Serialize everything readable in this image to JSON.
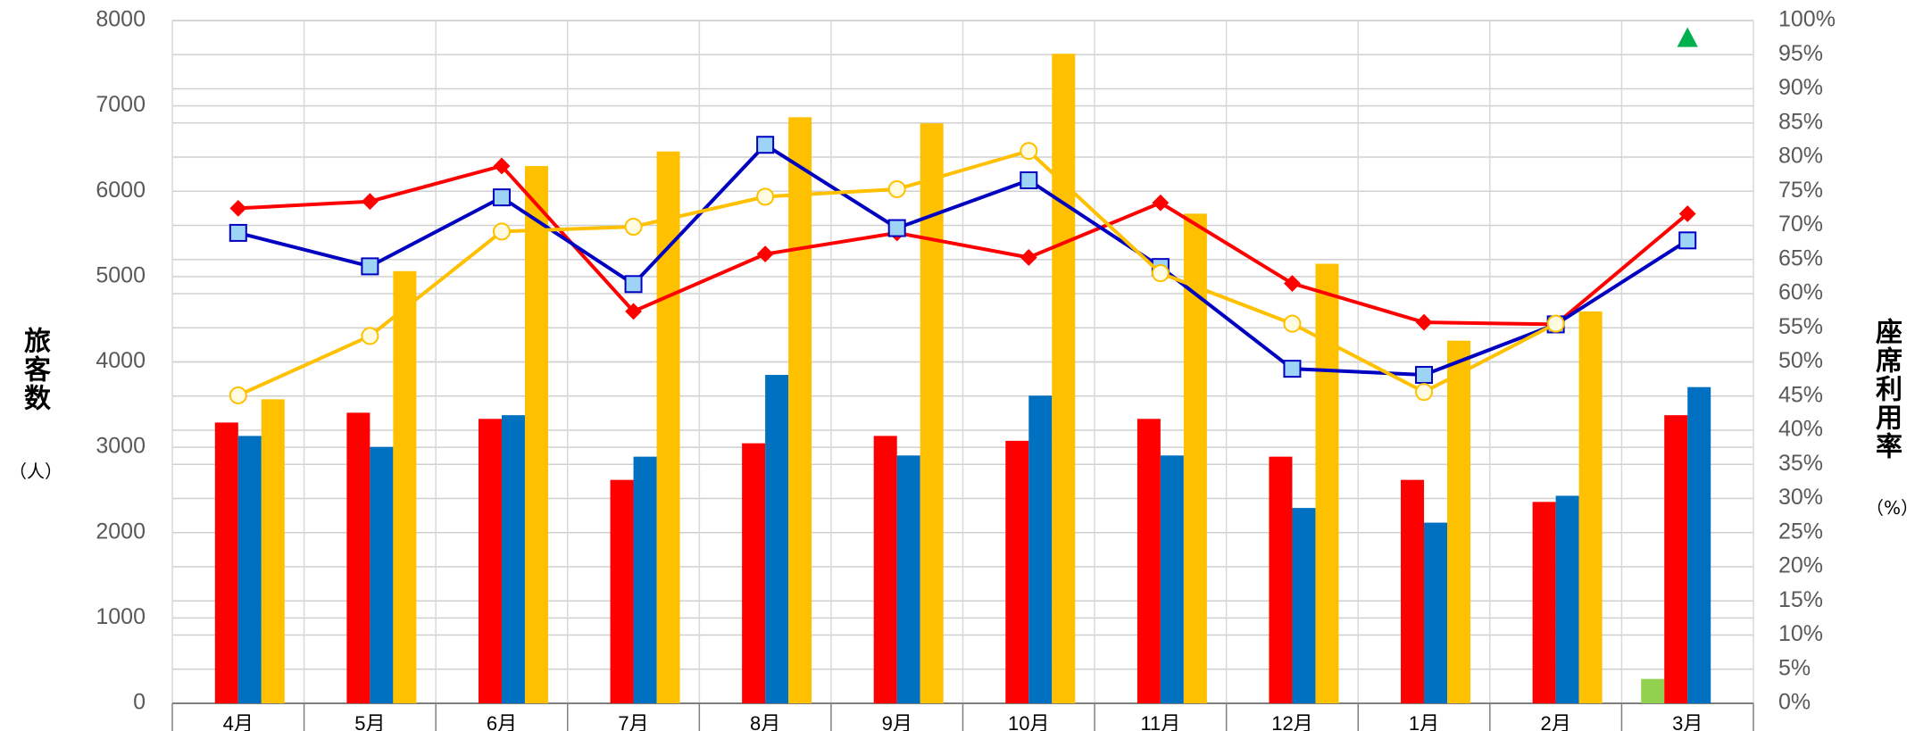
{
  "chart_data": {
    "type": "bar",
    "y_label": "旅客数",
    "y_unit": "（人）",
    "y2_label": "座席利用率",
    "y2_unit": "（%）",
    "categories": [
      "4月",
      "5月",
      "6月",
      "7月",
      "8月",
      "9月",
      "10月",
      "11月",
      "12月",
      "1月",
      "2月",
      "3月"
    ],
    "ylim": [
      0,
      8000
    ],
    "yticks": [
      0,
      1000,
      2000,
      3000,
      4000,
      5000,
      6000,
      7000,
      8000
    ],
    "y2lim": [
      0,
      100
    ],
    "y2ticks": [
      {
        "value": 0,
        "label": "0%"
      },
      {
        "value": 5,
        "label": "5%"
      },
      {
        "value": 10,
        "label": "10%"
      },
      {
        "value": 15,
        "label": "15%"
      },
      {
        "value": 20,
        "label": "20%"
      },
      {
        "value": 25,
        "label": "25%"
      },
      {
        "value": 30,
        "label": "30%"
      },
      {
        "value": 35,
        "label": "35%"
      },
      {
        "value": 40,
        "label": "40%"
      },
      {
        "value": 45,
        "label": "45%"
      },
      {
        "value": 50,
        "label": "50%"
      },
      {
        "value": 55,
        "label": "55%"
      },
      {
        "value": 60,
        "label": "60%"
      },
      {
        "value": 65,
        "label": "65%"
      },
      {
        "value": 70,
        "label": "70%"
      },
      {
        "value": 75,
        "label": "75%"
      },
      {
        "value": 80,
        "label": "80%"
      },
      {
        "value": 85,
        "label": "85%"
      },
      {
        "value": 90,
        "label": "90%"
      },
      {
        "value": 95,
        "label": "95%"
      },
      {
        "value": 100,
        "label": "100%"
      }
    ],
    "grid": true,
    "series": [
      {
        "type": "bar",
        "color": "#92d050",
        "values": [
          null,
          null,
          null,
          null,
          null,
          null,
          null,
          null,
          null,
          null,
          null,
          286
        ]
      },
      {
        "type": "bar",
        "color": "#ff0000",
        "values": [
          3290,
          3405,
          3333,
          2618,
          3047,
          3133,
          3076,
          3333,
          2890,
          2618,
          2360,
          3376
        ]
      },
      {
        "type": "bar",
        "color": "#0070c0",
        "values": [
          3133,
          3004,
          3376,
          2890,
          3848,
          2904,
          3605,
          2904,
          2289,
          2117,
          2432,
          3705
        ]
      },
      {
        "type": "bar",
        "color": "#ffc000",
        "values": [
          3562,
          5064,
          6295,
          6466,
          6867,
          6795,
          7611,
          5737,
          5150,
          4249,
          4592,
          null
        ]
      },
      {
        "type": "line",
        "axis": "y2",
        "color": "#ff0000",
        "marker": "diamond",
        "values": [
          72.5,
          73.5,
          78.7,
          57.4,
          65.8,
          68.9,
          65.3,
          73.3,
          61.5,
          55.8,
          55.5,
          71.7
        ]
      },
      {
        "type": "line",
        "axis": "y2",
        "color": "#0000c0",
        "marker": "square",
        "values": [
          68.9,
          64.0,
          74.1,
          61.4,
          81.8,
          69.6,
          76.6,
          63.9,
          49.0,
          48.1,
          55.5,
          67.8
        ]
      },
      {
        "type": "line",
        "axis": "y2",
        "color": "#ffc000",
        "marker": "circle",
        "values": [
          45.1,
          53.8,
          69.1,
          69.8,
          74.2,
          75.3,
          80.9,
          63.0,
          55.6,
          45.6,
          55.6,
          null
        ]
      },
      {
        "type": "line",
        "axis": "y2",
        "color": "#00b050",
        "marker": "triangle",
        "values": [
          null,
          null,
          null,
          null,
          null,
          null,
          null,
          null,
          null,
          null,
          null,
          97.3
        ]
      }
    ]
  }
}
